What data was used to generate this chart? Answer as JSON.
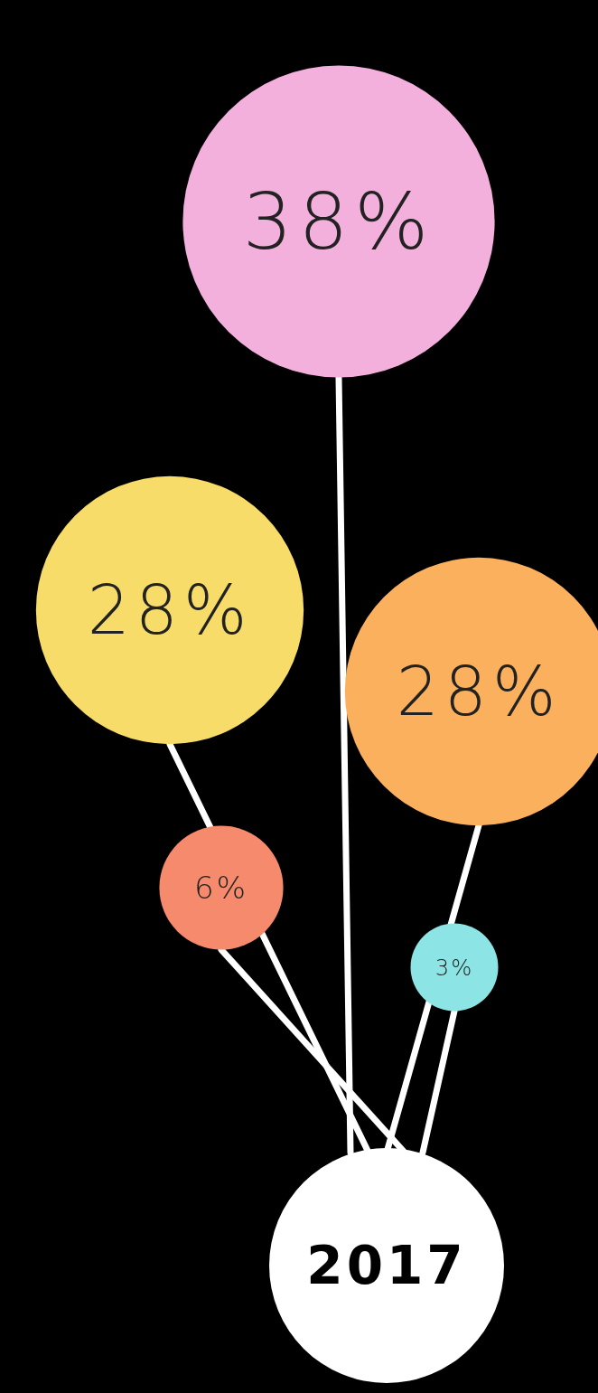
{
  "chart_data": {
    "type": "other",
    "title": "2017",
    "categories": [
      null,
      null,
      null,
      null,
      null
    ],
    "values": [
      38,
      28,
      28,
      6,
      3
    ],
    "value_labels": [
      "38%",
      "28%",
      "28%",
      "6%",
      "3%"
    ],
    "colors": [
      "#f4b0dc",
      "#f7dc6a",
      "#fbb05e",
      "#f58a6c",
      "#8de4e4"
    ]
  }
}
